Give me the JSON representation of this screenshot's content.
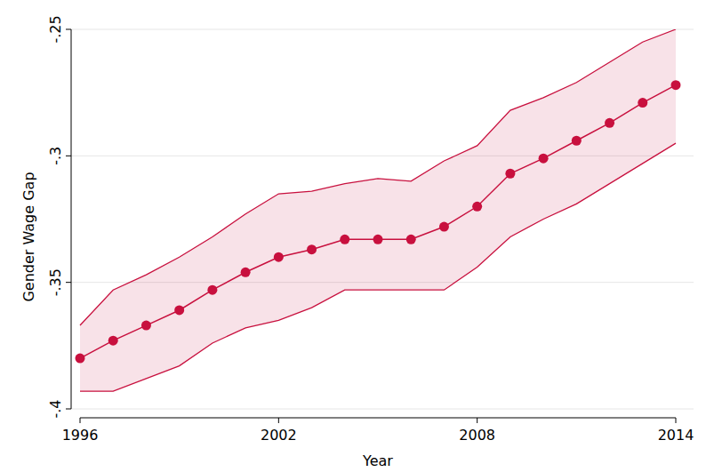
{
  "chart_data": {
    "type": "line",
    "x_label": "Year",
    "y_label": "Gender Wage Gap",
    "x": [
      1996,
      1997,
      1998,
      1999,
      2000,
      2001,
      2002,
      2003,
      2004,
      2005,
      2006,
      2007,
      2008,
      2009,
      2010,
      2011,
      2012,
      2013,
      2014
    ],
    "values": [
      -0.38,
      -0.373,
      -0.367,
      -0.361,
      -0.353,
      -0.346,
      -0.34,
      -0.337,
      -0.333,
      -0.333,
      -0.333,
      -0.328,
      -0.32,
      -0.307,
      -0.301,
      -0.294,
      -0.287,
      -0.279,
      -0.272
    ],
    "upper": [
      -0.367,
      -0.353,
      -0.347,
      -0.34,
      -0.332,
      -0.323,
      -0.315,
      -0.314,
      -0.311,
      -0.309,
      -0.31,
      -0.302,
      -0.296,
      -0.282,
      -0.277,
      -0.271,
      -0.263,
      -0.255,
      -0.25
    ],
    "lower": [
      -0.393,
      -0.393,
      -0.388,
      -0.383,
      -0.374,
      -0.368,
      -0.365,
      -0.36,
      -0.353,
      -0.353,
      -0.353,
      -0.353,
      -0.344,
      -0.332,
      -0.325,
      -0.319,
      -0.311,
      -0.303,
      -0.295
    ],
    "color": "#c8103e",
    "marker": "circle",
    "grid": true,
    "xlim": [
      1996,
      2014
    ],
    "xticks": [
      1996,
      2002,
      2008,
      2014
    ],
    "ylim": [
      -0.4,
      -0.25
    ],
    "yticks": [
      {
        "value": -0.4,
        "label": "-.4"
      },
      {
        "value": -0.35,
        "label": "-.35"
      },
      {
        "value": -0.3,
        "label": "-.3"
      },
      {
        "value": -0.25,
        "label": "-.25"
      }
    ]
  }
}
